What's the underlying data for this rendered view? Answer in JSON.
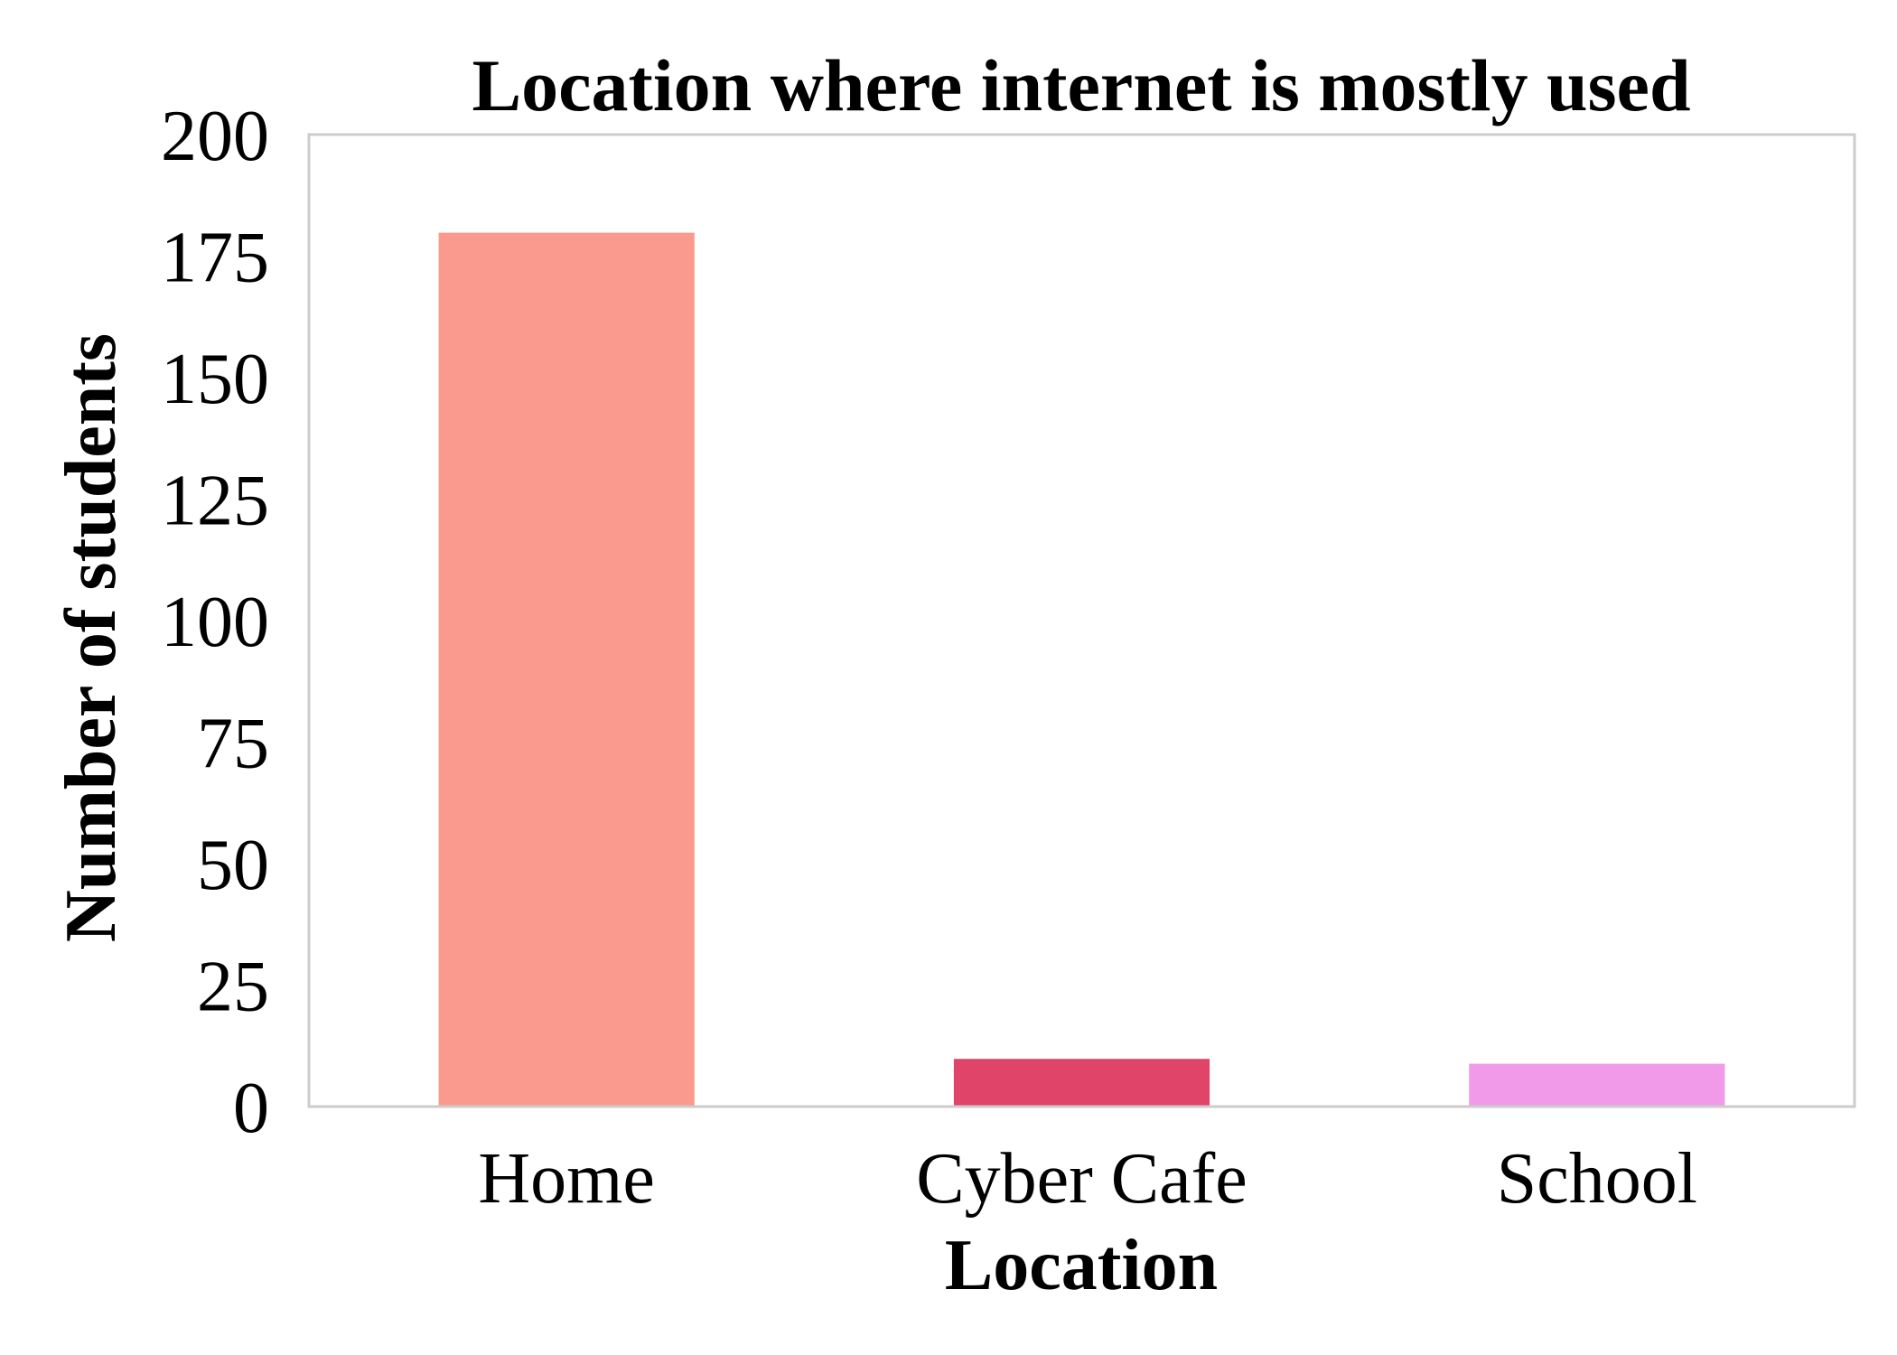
{
  "chart_data": {
    "type": "bar",
    "title": "Location where internet is mostly used",
    "xlabel": "Location",
    "ylabel": "Number of students",
    "categories": [
      "Home",
      "Cyber Cafe",
      "School"
    ],
    "values": [
      180,
      10,
      9
    ],
    "colors": [
      "#fa998e",
      "#e04468",
      "#f09ae9"
    ],
    "ylim": [
      0,
      200
    ],
    "yticks": [
      0,
      25,
      50,
      75,
      100,
      125,
      150,
      175,
      200
    ],
    "ytick_labels": [
      "0",
      "25",
      "50",
      "75",
      "100",
      "125",
      "150",
      "175",
      "200"
    ],
    "grid": false,
    "legend": "none",
    "frame_color": "#cccccc"
  }
}
